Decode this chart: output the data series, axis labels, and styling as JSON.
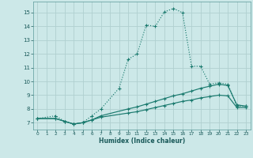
{
  "title": "",
  "xlabel": "Humidex (Indice chaleur)",
  "ylabel": "",
  "bg_color": "#cce8e8",
  "grid_color": "#b0d0d0",
  "line_color": "#1a7a6e",
  "xlim": [
    -0.5,
    23.5
  ],
  "ylim": [
    6.5,
    15.8
  ],
  "xticks": [
    0,
    1,
    2,
    3,
    4,
    5,
    6,
    7,
    8,
    9,
    10,
    11,
    12,
    13,
    14,
    15,
    16,
    17,
    18,
    19,
    20,
    21,
    22,
    23
  ],
  "yticks": [
    7,
    8,
    9,
    10,
    11,
    12,
    13,
    14,
    15
  ],
  "series1_x": [
    0,
    2,
    3,
    4,
    5,
    6,
    7,
    9,
    10,
    11,
    12,
    13,
    14,
    15,
    16,
    17,
    18,
    19,
    20,
    21,
    22,
    23
  ],
  "series1_y": [
    7.3,
    7.5,
    7.1,
    6.9,
    7.0,
    7.5,
    8.0,
    9.5,
    11.6,
    12.0,
    14.1,
    14.0,
    15.05,
    15.3,
    15.0,
    11.1,
    11.1,
    9.8,
    9.9,
    9.8,
    8.2,
    8.2
  ],
  "series2_x": [
    0,
    2,
    3,
    4,
    5,
    6,
    7,
    10,
    11,
    12,
    13,
    14,
    15,
    16,
    17,
    18,
    19,
    20,
    21,
    22,
    23
  ],
  "series2_y": [
    7.3,
    7.3,
    7.1,
    6.9,
    7.0,
    7.2,
    7.5,
    8.0,
    8.15,
    8.35,
    8.55,
    8.75,
    8.95,
    9.1,
    9.3,
    9.5,
    9.65,
    9.8,
    9.7,
    8.3,
    8.2
  ],
  "series3_x": [
    0,
    2,
    3,
    4,
    5,
    6,
    7,
    10,
    11,
    12,
    13,
    14,
    15,
    16,
    17,
    18,
    19,
    20,
    21,
    22,
    23
  ],
  "series3_y": [
    7.3,
    7.3,
    7.1,
    6.9,
    7.0,
    7.2,
    7.4,
    7.7,
    7.8,
    7.95,
    8.1,
    8.25,
    8.4,
    8.55,
    8.65,
    8.8,
    8.9,
    9.0,
    8.95,
    8.1,
    8.1
  ]
}
